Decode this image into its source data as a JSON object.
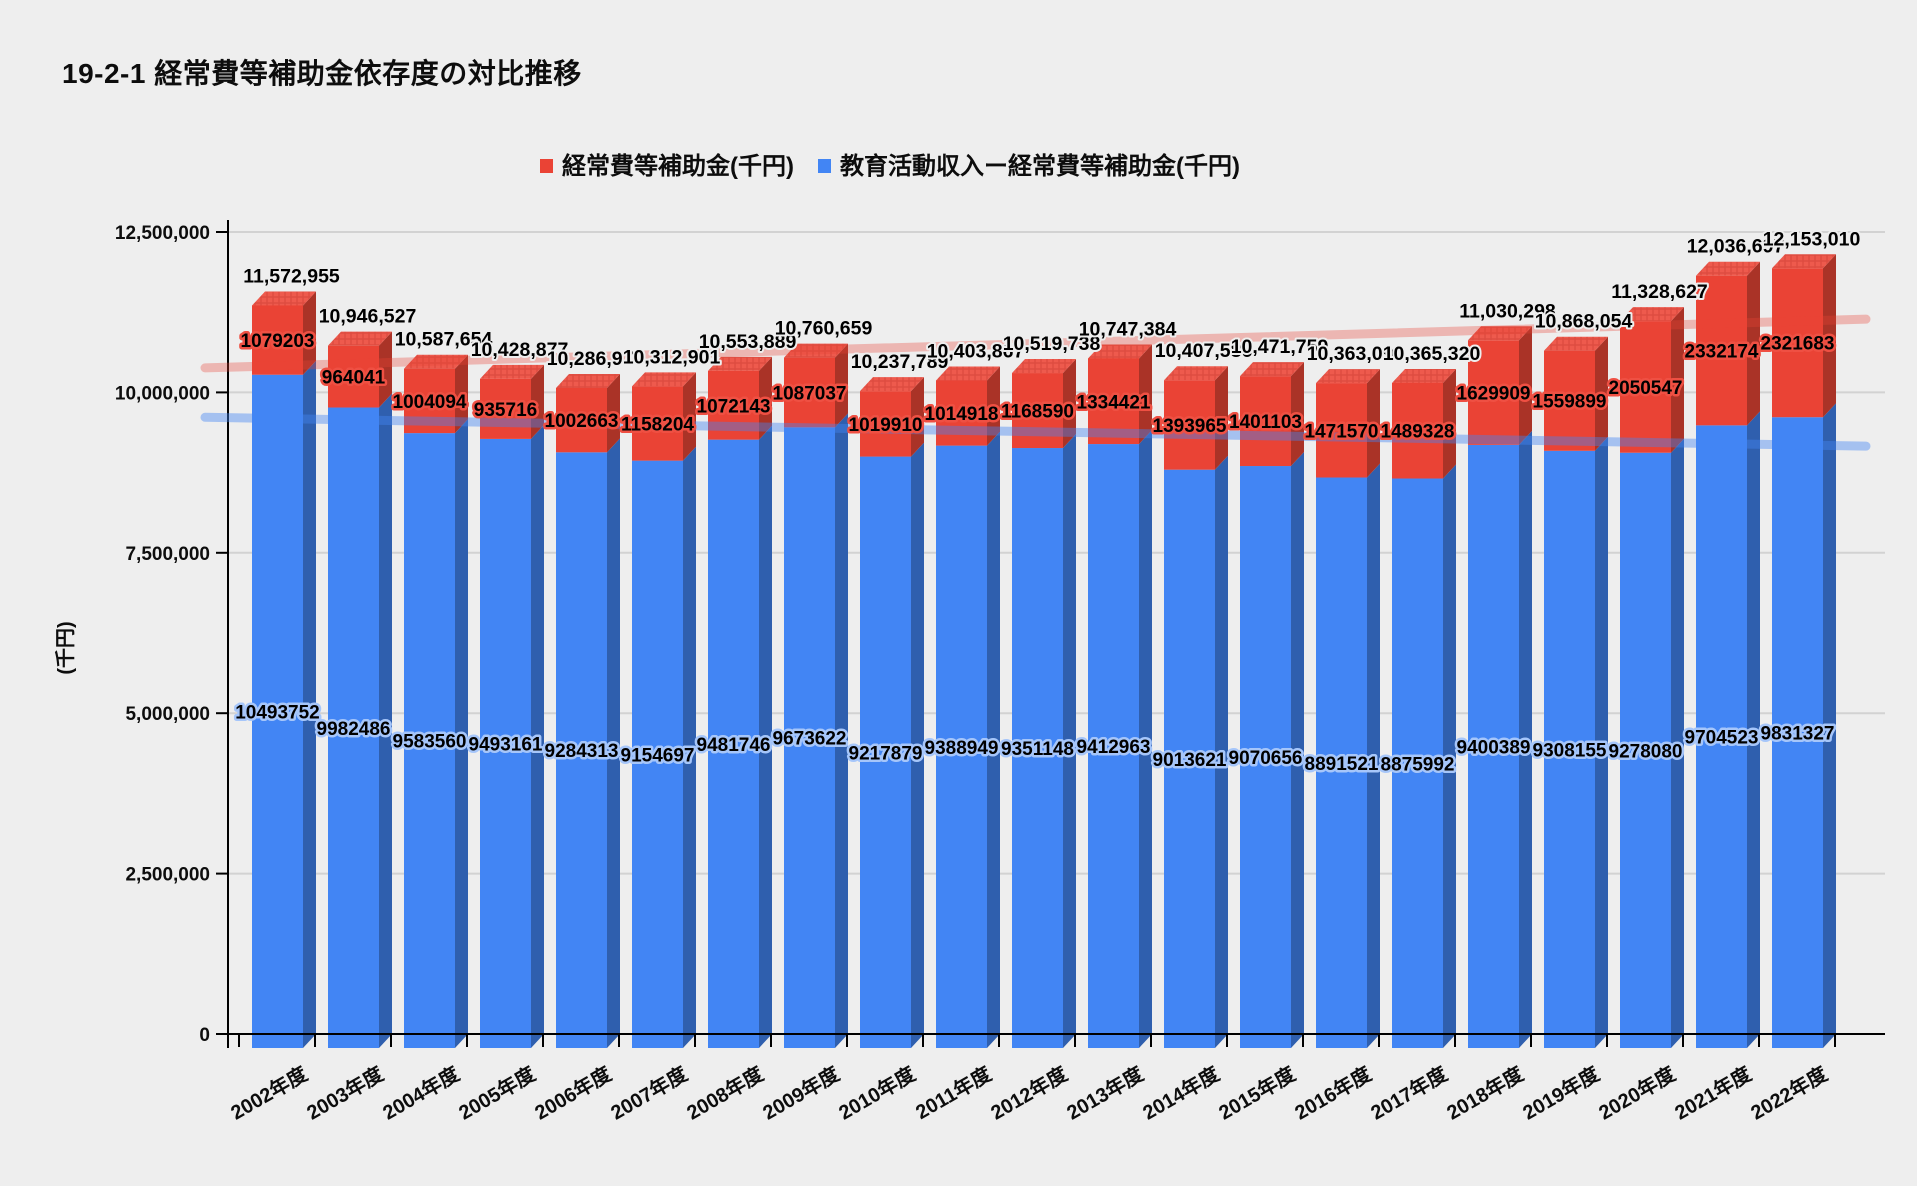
{
  "title": "19-2-1 経常費等補助金依存度の対比推移",
  "legend": [
    {
      "label": "経常費等補助金(千円)",
      "color": "#ea4335"
    },
    {
      "label": "教育活動収入ー経常費等補助金(千円)",
      "color": "#4285f4"
    }
  ],
  "y_axis": {
    "title": "(千円)",
    "tick_labels": [
      "0",
      "2,500,000",
      "5,000,000",
      "7,500,000",
      "10,000,000",
      "12,500,000"
    ],
    "tick_values": [
      0,
      2500000,
      5000000,
      7500000,
      10000000,
      12500000
    ]
  },
  "colors": {
    "background": "#eeeeee",
    "gridline": "#d2d2d2",
    "axis": "#000000",
    "red_front": "#ea4335",
    "red_side": "#aa3327",
    "red_top": "#ee5a4d",
    "red_top_hatch": "#d9473b",
    "blue_front": "#4285f4",
    "blue_side": "#2f5fae",
    "red_label_halo": "#ef5043",
    "blue_label_halo": "#a6c6fa",
    "total_label_halo": "#eeeeee"
  },
  "chart_data": {
    "type": "bar",
    "stacked": true,
    "title": "19-2-1 経常費等補助金依存度の対比推移",
    "xlabel": "",
    "ylabel": "(千円)",
    "ylim": [
      0,
      12500000
    ],
    "grid": true,
    "legend_position": "top",
    "categories": [
      "2002年度",
      "2003年度",
      "2004年度",
      "2005年度",
      "2006年度",
      "2007年度",
      "2008年度",
      "2009年度",
      "2010年度",
      "2011年度",
      "2012年度",
      "2013年度",
      "2014年度",
      "2015年度",
      "2016年度",
      "2017年度",
      "2018年度",
      "2019年度",
      "2020年度",
      "2021年度",
      "2022年度"
    ],
    "series": [
      {
        "name": "教育活動収入ー経常費等補助金(千円)",
        "color": "#4285f4",
        "values": [
          10493752,
          9982486,
          9583560,
          9493161,
          9284313,
          9154697,
          9481746,
          9673622,
          9217879,
          9388949,
          9351148,
          9412963,
          9013621,
          9070656,
          8891521,
          8875992,
          9400389,
          9308155,
          9278080,
          9704523,
          9831327
        ]
      },
      {
        "name": "経常費等補助金(千円)",
        "color": "#ea4335",
        "values": [
          1079203,
          964041,
          1004094,
          935716,
          1002663,
          1158204,
          1072143,
          1087037,
          1019910,
          1014918,
          1168590,
          1334421,
          1393965,
          1401103,
          1471570,
          1489328,
          1629909,
          1559899,
          2050547,
          2332174,
          2321683
        ]
      }
    ],
    "totals_display": [
      "11,572,955",
      "10,946,527",
      "10,587,654",
      "10,428,877",
      "10,286,976",
      "10,312,901",
      "10,553,889",
      "10,760,659",
      "10,237,789",
      "10,403,867",
      "10,519,738",
      "10,747,384",
      "10,407,586",
      "10,471,759",
      "10,363,091",
      "10,365,320",
      "11,030,298",
      "10,868,054",
      "11,328,627",
      "12,036,697",
      "12,153,010"
    ],
    "trendlines": [
      {
        "name": "total-trend",
        "color": "#ea4335",
        "opacity": 0.32,
        "from_value": 10600000,
        "to_value": 11360000
      },
      {
        "name": "blue-trend",
        "color": "#4285f4",
        "opacity": 0.42,
        "from_value": 9830000,
        "to_value": 9380000
      }
    ]
  }
}
